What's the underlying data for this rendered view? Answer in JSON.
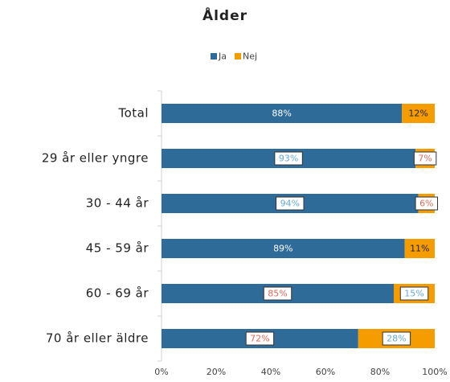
{
  "chart_data": {
    "type": "stacked_barh",
    "title": "Ålder",
    "categories": [
      "Total",
      "29 år eller yngre",
      "30 - 44 år",
      "45 - 59 år",
      "60 - 69 år",
      "70 år eller äldre"
    ],
    "series": [
      {
        "name": "Ja",
        "color": "#2e6b99",
        "values": [
          88,
          93,
          94,
          89,
          85,
          72
        ],
        "value_labels": [
          "88%",
          "93%",
          "94%",
          "89%",
          "85%",
          "72%"
        ]
      },
      {
        "name": "Nej",
        "color": "#f59c00",
        "values": [
          12,
          7,
          6,
          11,
          15,
          28
        ],
        "value_labels": [
          "12%",
          "7%",
          "6%",
          "11%",
          "15%",
          "28%"
        ]
      }
    ],
    "xlim": [
      0,
      100
    ],
    "xticks": [
      {
        "value": 0,
        "label": "0%"
      },
      {
        "value": 20,
        "label": "20%"
      },
      {
        "value": 40,
        "label": "40%"
      },
      {
        "value": 60,
        "label": "60%"
      },
      {
        "value": 80,
        "label": "80%"
      },
      {
        "value": 100,
        "label": "100%"
      }
    ],
    "legend": "top"
  }
}
